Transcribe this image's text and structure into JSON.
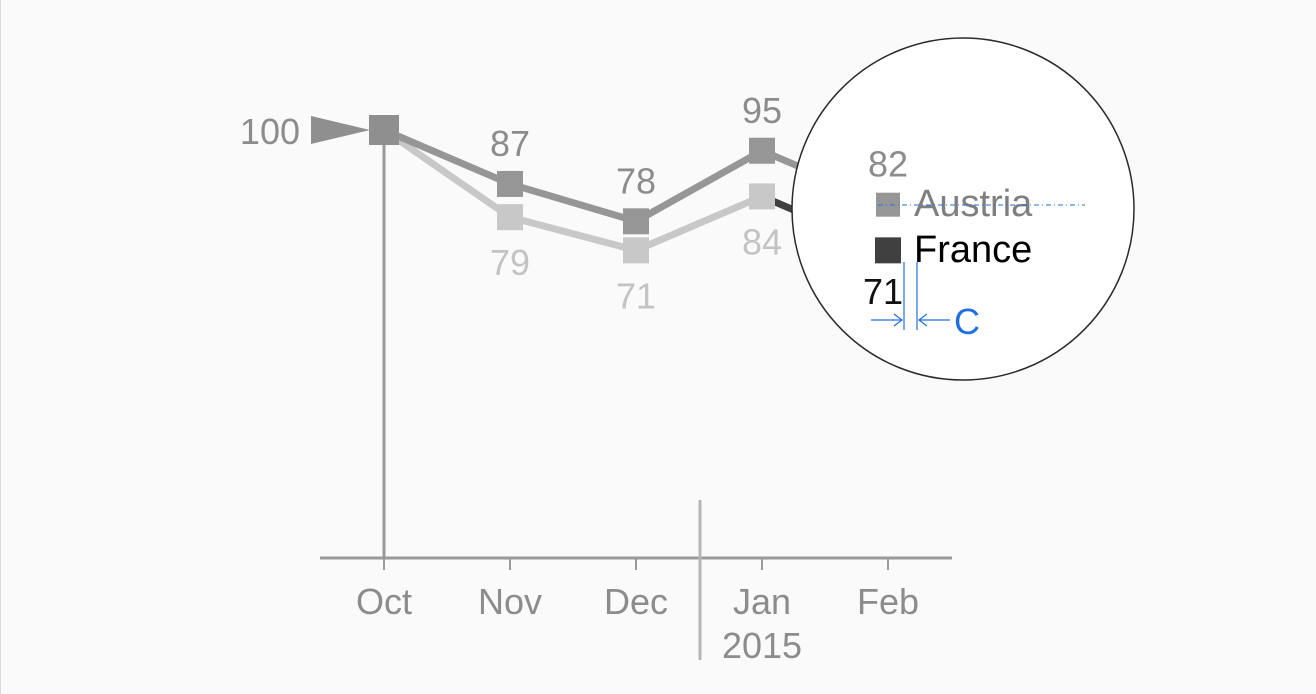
{
  "chart_data": {
    "type": "line",
    "categories": [
      "Oct",
      "Nov",
      "Dec",
      "Jan",
      "Feb"
    ],
    "x_sublabels": [
      "",
      "",
      "",
      "2015",
      ""
    ],
    "start_label": "100",
    "series": [
      {
        "name": "Austria",
        "values": [
          100,
          87,
          78,
          95,
          82
        ],
        "labels": [
          "",
          "87",
          "78",
          "95",
          "82"
        ],
        "color": "#969696",
        "label_color": "#8c8c8c",
        "legend_color": "#7f7f7f"
      },
      {
        "name": "France",
        "values": [
          100,
          79,
          71,
          84,
          71
        ],
        "labels": [
          "",
          "79",
          "71",
          "84",
          "71"
        ],
        "color": "#c8c8c8",
        "last_color": "#404040",
        "label_color": "#c3c3c3",
        "last_label_color": "#111111",
        "legend_color": "#000000"
      }
    ],
    "ylim": [
      60,
      100
    ],
    "grid": false,
    "annotation": {
      "text": "C",
      "color": "#1f6fe0"
    },
    "callout": "circle"
  }
}
